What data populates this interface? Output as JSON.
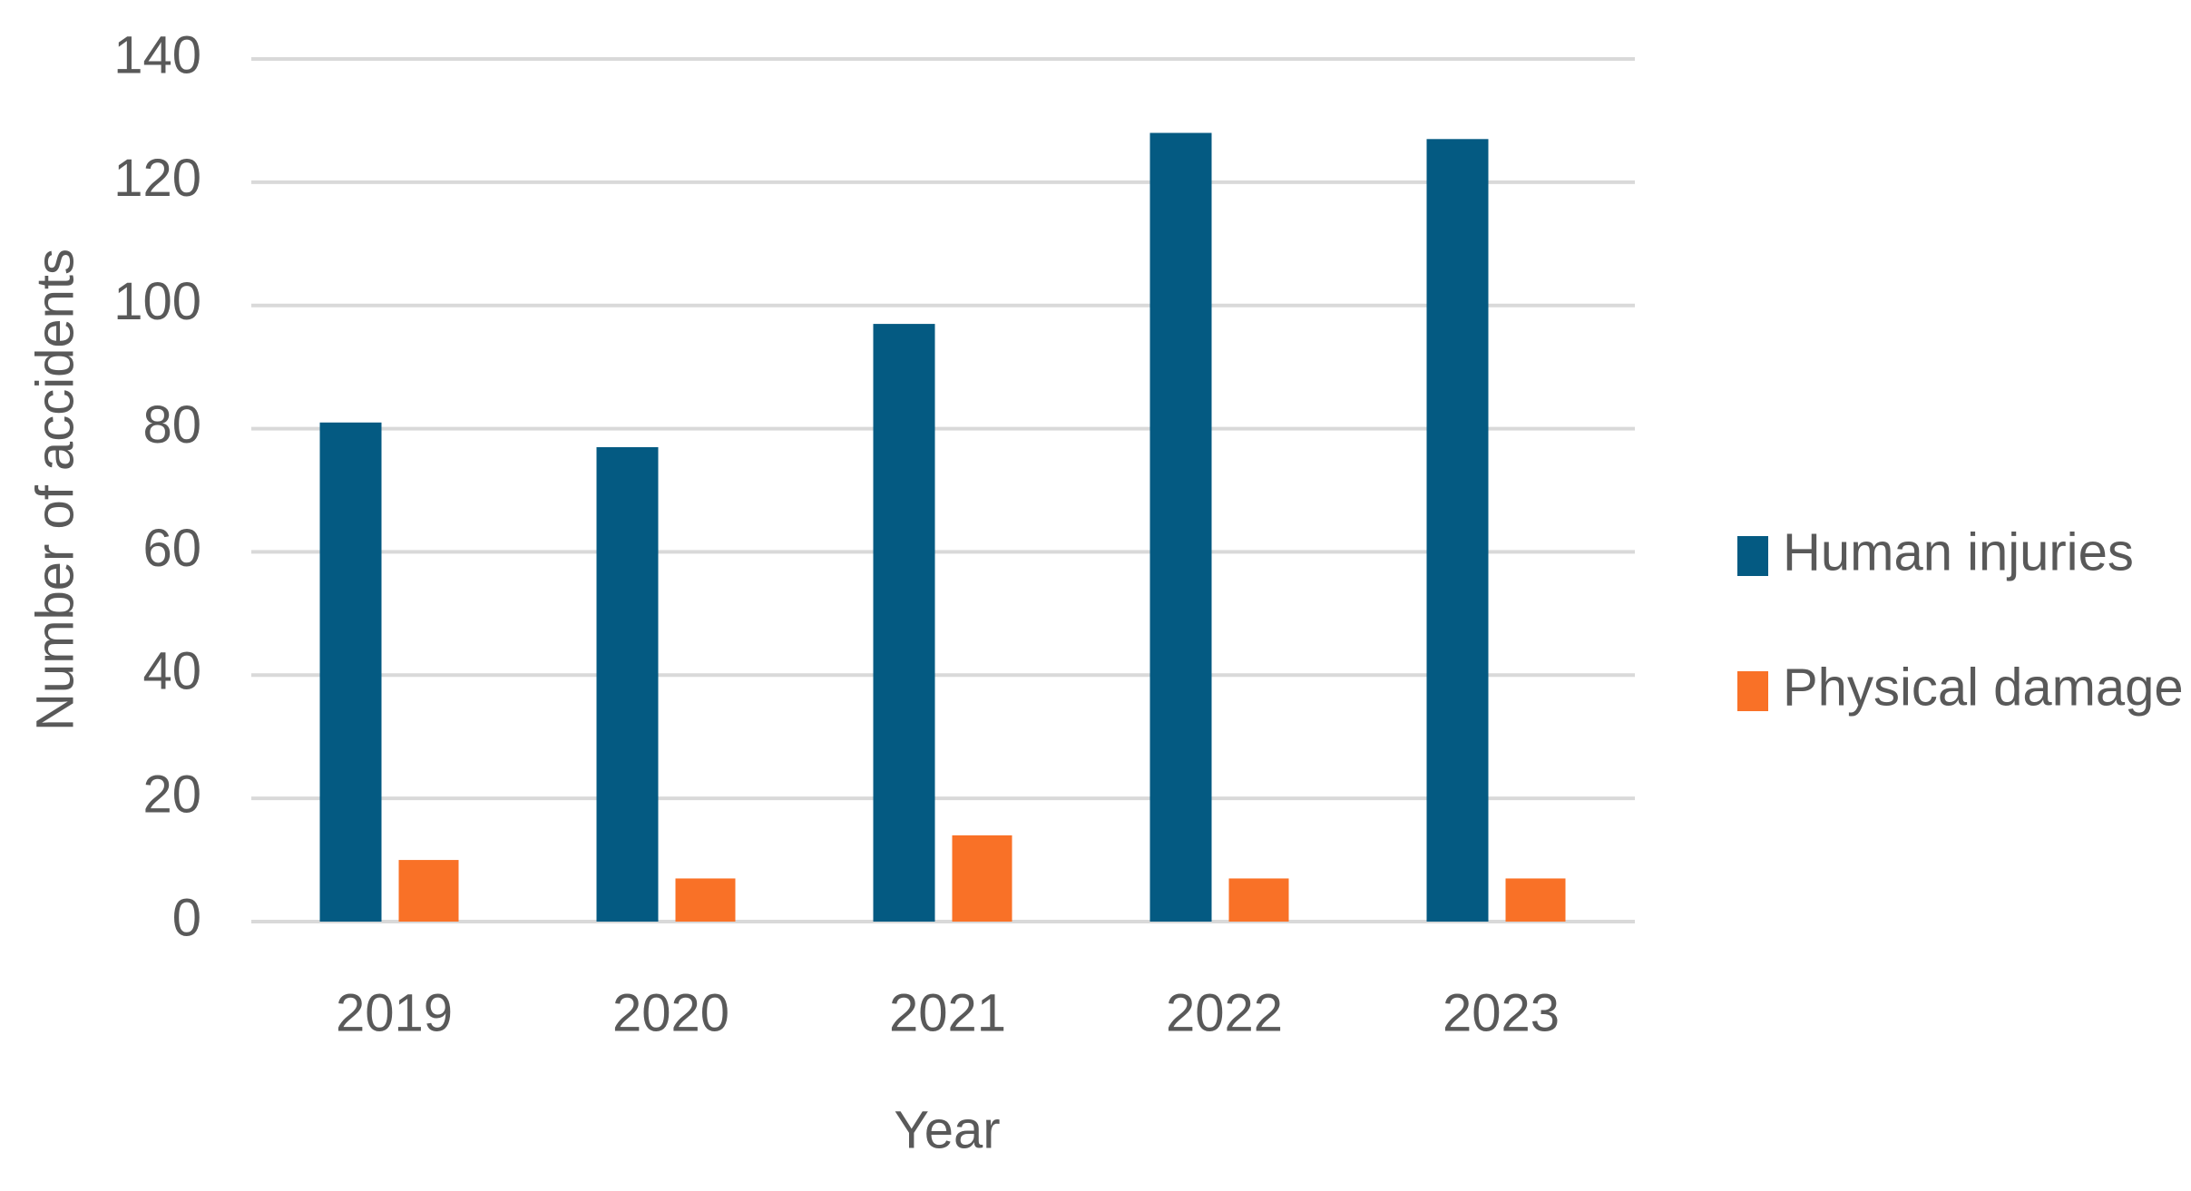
{
  "chart_data": {
    "type": "bar",
    "x_label": "Year",
    "y_label": "Number of accidents",
    "categories": [
      "2019",
      "2020",
      "2021",
      "2022",
      "2023"
    ],
    "series": [
      {
        "name": "Human injuries",
        "color": "#045a82",
        "values": [
          81,
          77,
          97,
          128,
          127
        ]
      },
      {
        "name": "Physical damage",
        "color": "#f97127",
        "values": [
          10,
          7,
          14,
          7,
          7
        ]
      }
    ],
    "ylim": [
      0,
      140
    ],
    "yticks": [
      0,
      20,
      40,
      60,
      80,
      100,
      120,
      140
    ],
    "grid": true,
    "legend": "right"
  }
}
